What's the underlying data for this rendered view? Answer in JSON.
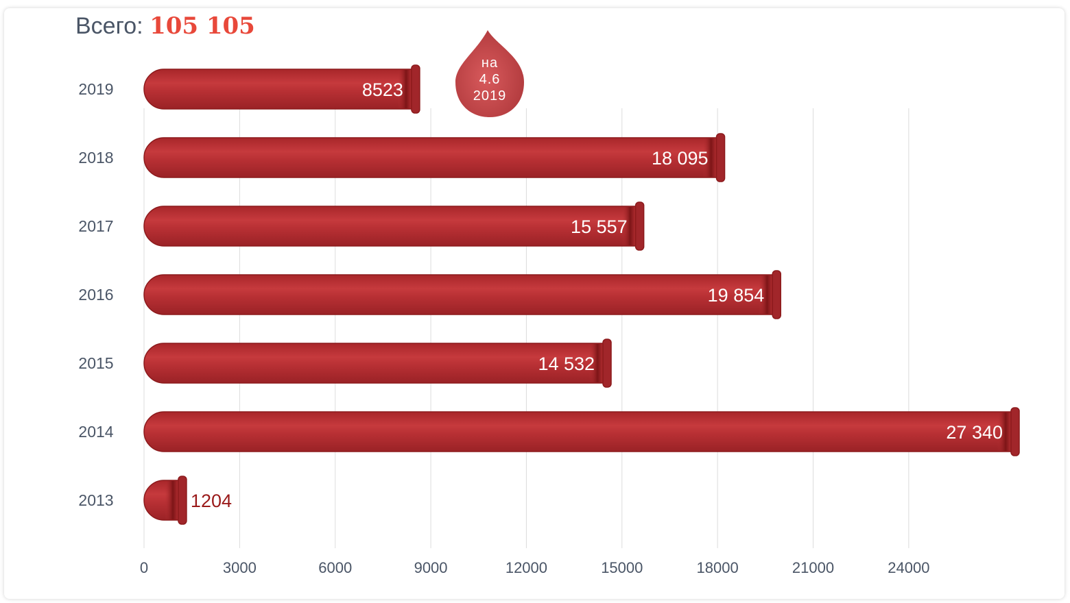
{
  "header": {
    "total_label": "Всего:",
    "total_value": "105 105"
  },
  "note": {
    "line1": "на",
    "line2": "4.6",
    "line3": "2019"
  },
  "colors": {
    "bar": "#b83034",
    "bar_dark": "#8c1a1c",
    "total_accent": "#e8483a",
    "grid": "#dcdcdc",
    "text": "#4a5566"
  },
  "chart_data": {
    "type": "bar",
    "orientation": "horizontal",
    "title": "",
    "xlabel": "",
    "ylabel": "",
    "categories": [
      "2019",
      "2018",
      "2017",
      "2016",
      "2015",
      "2014",
      "2013"
    ],
    "values": [
      8523,
      18095,
      15557,
      19854,
      14532,
      27340,
      1204
    ],
    "value_labels": [
      "8523",
      "18 095",
      "15 557",
      "19 854",
      "14 532",
      "27 340",
      "1204"
    ],
    "x_ticks": [
      0,
      3000,
      6000,
      9000,
      12000,
      15000,
      18000,
      21000,
      24000
    ],
    "xlim": [
      0,
      27340
    ],
    "grid": true
  }
}
